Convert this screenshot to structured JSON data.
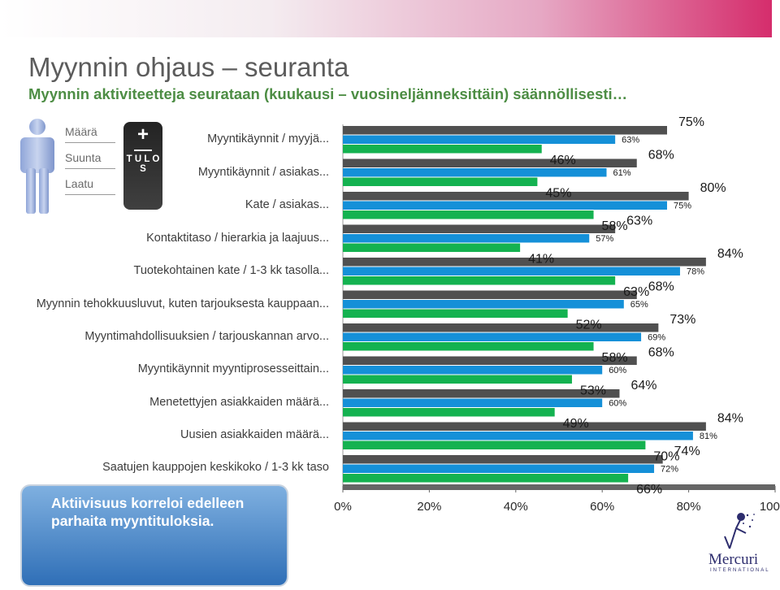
{
  "slide": {
    "title": "Myynnin ohjaus  – seuranta",
    "subtitle": "Myynnin aktiviteetteja seurataan (kuukausi – vuosineljänneksittäin) säännöllisesti…"
  },
  "legend": {
    "items": [
      "Määrä",
      "Suunta",
      "Laatu"
    ],
    "plus": "+",
    "tulos": "T U L O S"
  },
  "callout": {
    "text": "Aktiivisuus korreloi edelleen parhaita myyntituloksia."
  },
  "logo": {
    "name": "Mercuri",
    "subtitle": "INTERNATIONAL"
  },
  "colors": {
    "series1": "#505050",
    "series2": "#1590d8",
    "series3": "#14b250",
    "axis_bar": "#666666",
    "title": "#5c5c5c",
    "subtitle": "#4d8d44"
  },
  "chart_data": {
    "type": "bar",
    "orientation": "horizontal",
    "categories": [
      "Myyntikäynnit / myyjä...",
      "Myyntikäynnit / asiakas...",
      "Kate / asiakas...",
      "Kontaktitaso / hierarkia ja laajuus...",
      "Tuotekohtainen kate / 1-3 kk tasolla...",
      "Myynnin tehokkuusluvut, kuten tarjouksesta kauppaan...",
      "Myyntimahdollisuuksien / tarjouskannan arvo...",
      "Myyntikäynnit myyntiprosesseittain...",
      "Menetettyjen asiakkaiden määrä...",
      "Uusien asiakkaiden määrä...",
      "Saatujen kauppojen keskikoko / 1-3 kk taso"
    ],
    "series": [
      {
        "values": [
          75,
          68,
          80,
          63,
          84,
          68,
          73,
          68,
          64,
          84,
          74
        ]
      },
      {
        "values": [
          63,
          61,
          75,
          57,
          78,
          65,
          69,
          60,
          60,
          81,
          72
        ]
      },
      {
        "values": [
          46,
          45,
          58,
          41,
          63,
          52,
          58,
          53,
          49,
          70,
          66
        ]
      }
    ],
    "value_labels": [
      [
        "75%",
        "68%",
        "80%",
        "63%",
        "84%",
        "68%",
        "73%",
        "68%",
        "64%",
        "84%",
        "74%"
      ],
      [
        "63%",
        "61%",
        "75%",
        "57%",
        "78%",
        "65%",
        "69%",
        "60%",
        "60%",
        "81%",
        "72%"
      ],
      [
        "46%",
        "45%",
        "58%",
        "41%",
        "63%",
        "52%",
        "58%",
        "53%",
        "49%",
        "70%",
        "66%"
      ]
    ],
    "xticks": [
      "0%",
      "20%",
      "40%",
      "60%",
      "80%",
      "100%"
    ],
    "xlim": [
      0,
      100
    ],
    "legend": "left",
    "grid": false
  }
}
